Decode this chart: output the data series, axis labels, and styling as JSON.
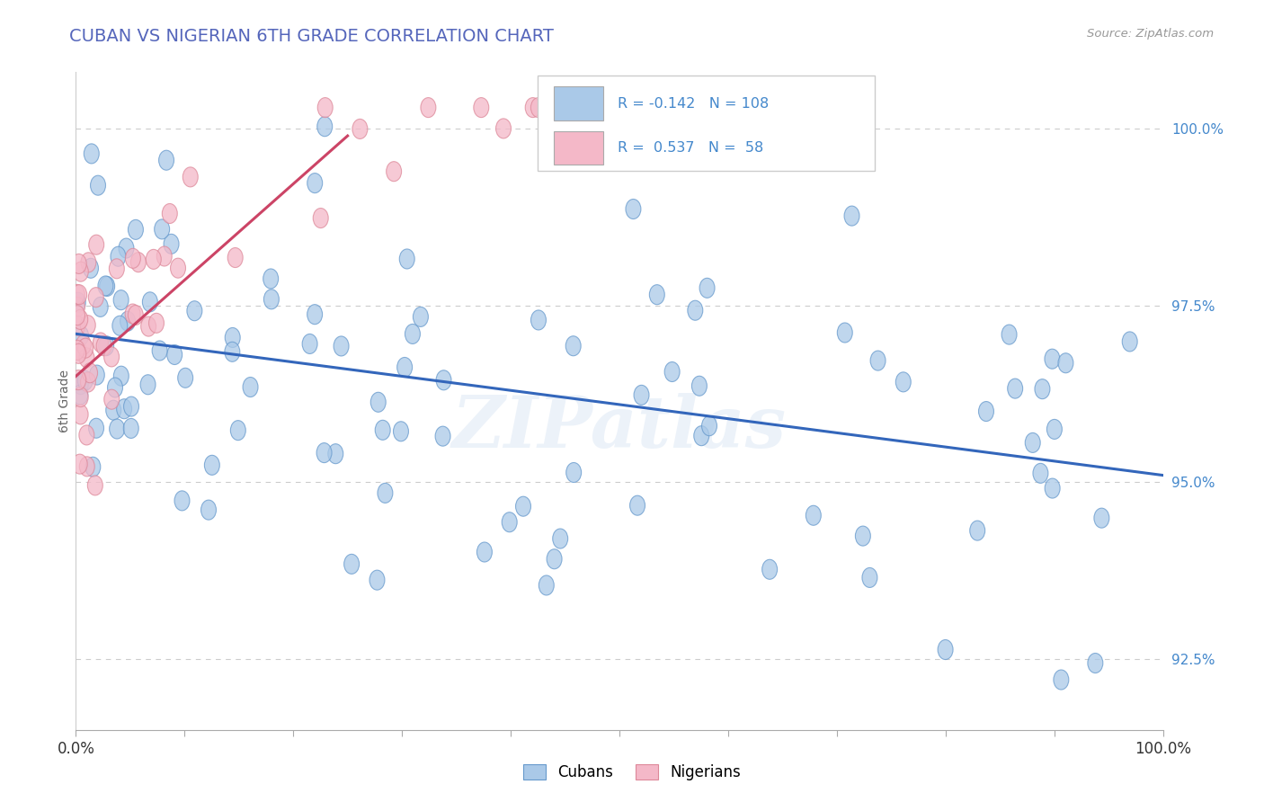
{
  "title": "CUBAN VS NIGERIAN 6TH GRADE CORRELATION CHART",
  "source": "Source: ZipAtlas.com",
  "ylabel": "6th Grade",
  "ylabel_right_ticks": [
    92.5,
    95.0,
    97.5,
    100.0
  ],
  "ylabel_right_labels": [
    "92.5%",
    "95.0%",
    "97.5%",
    "100.0%"
  ],
  "cubans_color": "#aac9e8",
  "cubans_edge_color": "#6699cc",
  "nigerians_color": "#f4b8c8",
  "nigerians_edge_color": "#dd8899",
  "blue_line_color": "#3366bb",
  "pink_line_color": "#cc4466",
  "R_cubans": -0.142,
  "N_cubans": 108,
  "R_nigerians": 0.537,
  "N_nigerians": 58,
  "background_color": "#ffffff",
  "grid_color": "#cccccc",
  "title_color": "#5566bb",
  "source_color": "#999999",
  "right_tick_color": "#4488cc",
  "xlim": [
    0,
    100
  ],
  "ylim": [
    91.5,
    100.8
  ],
  "blue_line_x": [
    0,
    100
  ],
  "blue_line_y": [
    97.1,
    95.1
  ],
  "pink_line_x": [
    0,
    25
  ],
  "pink_line_y": [
    96.5,
    99.9
  ],
  "watermark": "ZIPatlas"
}
